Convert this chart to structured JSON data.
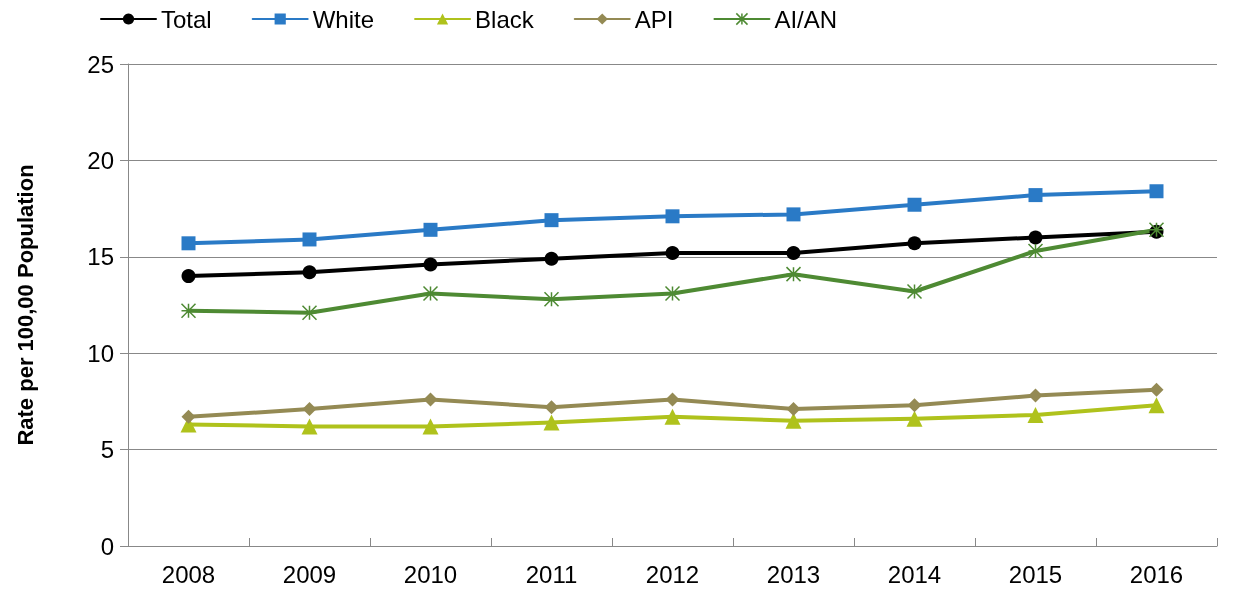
{
  "chart_data": {
    "type": "line",
    "ylabel": "Rate per 100,00 Population",
    "categories": [
      "2008",
      "2009",
      "2010",
      "2011",
      "2012",
      "2013",
      "2014",
      "2015",
      "2016"
    ],
    "ylim": [
      0,
      25
    ],
    "yticks": [
      0,
      5,
      10,
      15,
      20,
      25
    ],
    "grid": "y",
    "legend": "top left",
    "line_style": "solid",
    "series": [
      {
        "name": "Total",
        "color": "#000000",
        "marker": "circle",
        "values": [
          14.0,
          14.2,
          14.6,
          14.9,
          15.2,
          15.2,
          15.7,
          16.0,
          16.3
        ]
      },
      {
        "name": "White",
        "color": "#2a7ac6",
        "marker": "square",
        "values": [
          15.7,
          15.9,
          16.4,
          16.9,
          17.1,
          17.2,
          17.7,
          18.2,
          18.4
        ]
      },
      {
        "name": "Black",
        "color": "#afc21c",
        "marker": "triangle",
        "values": [
          6.3,
          6.2,
          6.2,
          6.4,
          6.7,
          6.5,
          6.6,
          6.8,
          7.3
        ]
      },
      {
        "name": "API",
        "color": "#948a54",
        "marker": "diamond",
        "values": [
          6.7,
          7.1,
          7.6,
          7.2,
          7.6,
          7.1,
          7.3,
          7.8,
          8.1
        ]
      },
      {
        "name": "AI/AN",
        "color": "#4e8a33",
        "marker": "cross",
        "values": [
          12.2,
          12.1,
          13.1,
          12.8,
          13.1,
          14.1,
          13.2,
          15.3,
          16.4
        ]
      }
    ]
  }
}
